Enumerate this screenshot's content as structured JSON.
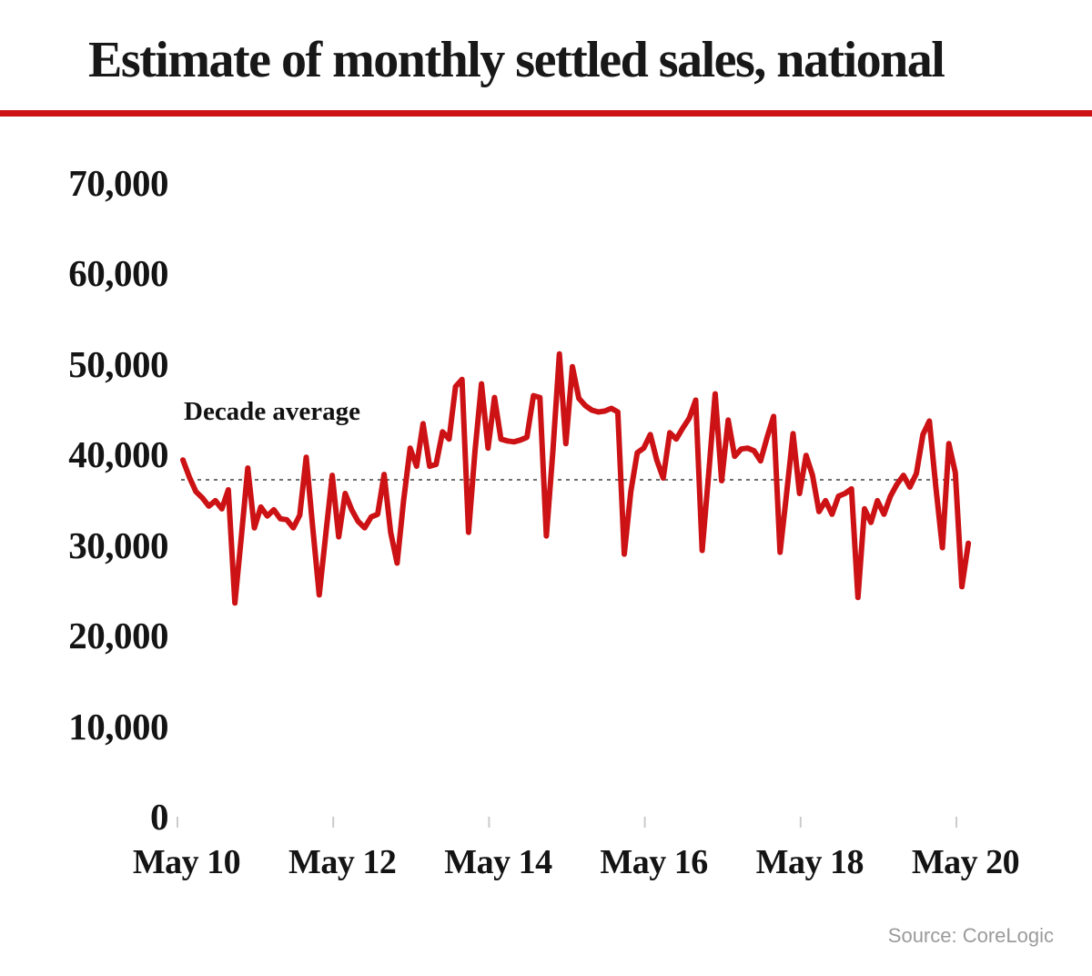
{
  "title": "Estimate of monthly settled sales, national",
  "source_note": "Source: CoreLogic",
  "annotation": {
    "label": "Decade average",
    "value": 37300
  },
  "colors": {
    "line": "#cc1215",
    "title_rule": "#cc1215",
    "axis_text": "#141414",
    "tick_mark": "#cbcbcb",
    "dotted_line": "#6e6e6e",
    "source_text": "#9b9b9b",
    "background": "#ffffff"
  },
  "chart_data": {
    "type": "line",
    "title": "Estimate of monthly settled sales, national",
    "series_name": "Monthly settled sales, national",
    "xlabel": "",
    "ylabel": "",
    "ylim": [
      0,
      70000
    ],
    "grid": "none",
    "legend": "none",
    "decade_average": 37300,
    "y_tick_values": [
      0,
      10000,
      20000,
      30000,
      40000,
      50000,
      60000,
      70000
    ],
    "y_tick_labels": [
      "0",
      "10,000",
      "20,000",
      "30,000",
      "40,000",
      "50,000",
      "60,000",
      "70,000"
    ],
    "x_tick_labels": [
      "May 10",
      "May 12",
      "May 14",
      "May 16",
      "May 18",
      "May 20"
    ],
    "source": "CoreLogic",
    "x": [
      "May 2010",
      "Jun 2010",
      "Jul 2010",
      "Aug 2010",
      "Sep 2010",
      "Oct 2010",
      "Nov 2010",
      "Dec 2010",
      "Jan 2011",
      "Feb 2011",
      "Mar 2011",
      "Apr 2011",
      "May 2011",
      "Jun 2011",
      "Jul 2011",
      "Aug 2011",
      "Sep 2011",
      "Oct 2011",
      "Nov 2011",
      "Dec 2011",
      "Jan 2012",
      "Feb 2012",
      "Mar 2012",
      "Apr 2012",
      "May 2012",
      "Jun 2012",
      "Jul 2012",
      "Aug 2012",
      "Sep 2012",
      "Oct 2012",
      "Nov 2012",
      "Dec 2012",
      "Jan 2013",
      "Feb 2013",
      "Mar 2013",
      "Apr 2013",
      "May 2013",
      "Jun 2013",
      "Jul 2013",
      "Aug 2013",
      "Sep 2013",
      "Oct 2013",
      "Nov 2013",
      "Dec 2013",
      "Jan 2014",
      "Feb 2014",
      "Mar 2014",
      "Apr 2014",
      "May 2014",
      "Jun 2014",
      "Jul 2014",
      "Aug 2014",
      "Sep 2014",
      "Oct 2014",
      "Nov 2014",
      "Dec 2014",
      "Jan 2015",
      "Feb 2015",
      "Mar 2015",
      "Apr 2015",
      "May 2015",
      "Jun 2015",
      "Jul 2015",
      "Aug 2015",
      "Sep 2015",
      "Oct 2015",
      "Nov 2015",
      "Dec 2015",
      "Jan 2016",
      "Feb 2016",
      "Mar 2016",
      "Apr 2016",
      "May 2016",
      "Jun 2016",
      "Jul 2016",
      "Aug 2016",
      "Sep 2016",
      "Oct 2016",
      "Nov 2016",
      "Dec 2016",
      "Jan 2017",
      "Feb 2017",
      "Mar 2017",
      "Apr 2017",
      "May 2017",
      "Jun 2017",
      "Jul 2017",
      "Aug 2017",
      "Sep 2017",
      "Oct 2017",
      "Nov 2017",
      "Dec 2017",
      "Jan 2018",
      "Feb 2018",
      "Mar 2018",
      "Apr 2018",
      "May 2018",
      "Jun 2018",
      "Jul 2018",
      "Aug 2018",
      "Sep 2018",
      "Oct 2018",
      "Nov 2018",
      "Dec 2018",
      "Jan 2019",
      "Feb 2019",
      "Mar 2019",
      "Apr 2019",
      "May 2019",
      "Jun 2019",
      "Jul 2019",
      "Aug 2019",
      "Sep 2019",
      "Oct 2019",
      "Nov 2019",
      "Dec 2019",
      "Jan 2020",
      "Feb 2020",
      "Mar 2020",
      "Apr 2020",
      "May 2020",
      "Jun 2020"
    ],
    "values": [
      39500,
      37600,
      36000,
      35300,
      34400,
      35000,
      34100,
      36200,
      23700,
      31000,
      38600,
      32000,
      34300,
      33300,
      34000,
      33000,
      32900,
      32000,
      33400,
      39800,
      32000,
      24600,
      31200,
      37800,
      31000,
      35800,
      34000,
      32700,
      32000,
      33200,
      33500,
      37900,
      31500,
      28100,
      35000,
      40800,
      38800,
      43500,
      38800,
      39000,
      42600,
      41800,
      47600,
      48400,
      31500,
      40500,
      47900,
      40800,
      46400,
      41800,
      41600,
      41500,
      41700,
      42000,
      46600,
      46400,
      31100,
      40500,
      51200,
      41300,
      49800,
      46300,
      45500,
      45000,
      44800,
      44900,
      45200,
      44800,
      29100,
      36000,
      40300,
      40800,
      42300,
      39500,
      37500,
      42500,
      41800,
      43000,
      44100,
      46100,
      29500,
      38000,
      46800,
      37200,
      43900,
      39900,
      40700,
      40800,
      40500,
      39400,
      42000,
      44300,
      29300,
      35800,
      42400,
      35800,
      40000,
      37800,
      33800,
      35000,
      33500,
      35500,
      35800,
      36300,
      24300,
      34100,
      32600,
      35000,
      33500,
      35500,
      36800,
      37800,
      36500,
      38000,
      42300,
      43800,
      36500,
      29800,
      41300,
      38100,
      25500,
      30300
    ]
  }
}
